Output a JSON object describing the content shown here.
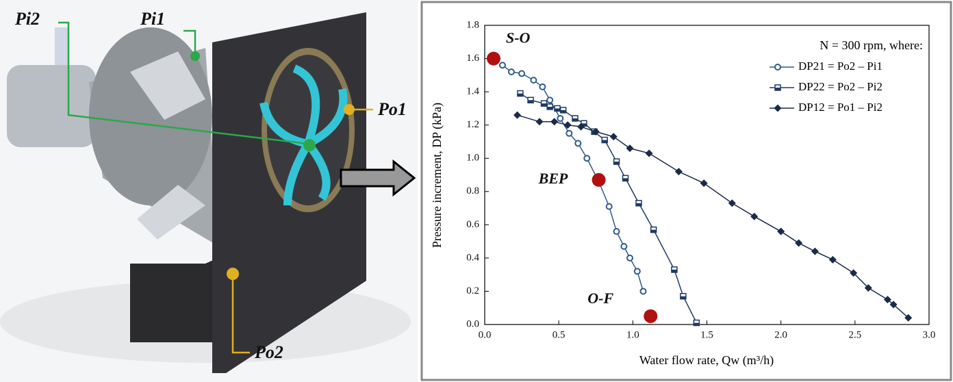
{
  "illustration_labels": [
    "Pi2",
    "Pi1",
    "Po1",
    "Po2"
  ],
  "chart_data": {
    "type": "line",
    "xlabel": "Water flow rate, Qw (m³/h)",
    "ylabel": "Pressure increment, DP (kPa)",
    "legend_title": "N = 300 rpm, where:",
    "legend": "upper right",
    "xlim": [
      0,
      3.0
    ],
    "ylim": [
      0,
      1.8
    ],
    "xticks": [
      {
        "value": 0,
        "label": "0.0"
      },
      0.5,
      {
        "value": 1,
        "label": "1.0"
      },
      1.5,
      {
        "value": 2,
        "label": "2.0"
      },
      2.5,
      {
        "value": 3,
        "label": "3.0"
      }
    ],
    "yticks": [
      {
        "value": 0,
        "label": "0.0"
      },
      0.2,
      0.4,
      0.6,
      0.8,
      {
        "value": 1,
        "label": "1.0"
      },
      1.2,
      1.4,
      1.6,
      1.8
    ],
    "series": [
      {
        "name": "DP21 = Po2 – Pi1",
        "color": "#2f5b8c",
        "marker": "circle",
        "x": [
          0.12,
          0.18,
          0.25,
          0.33,
          0.39,
          0.44,
          0.51,
          0.57,
          0.63,
          0.69,
          0.77,
          0.84,
          0.89,
          0.94,
          0.98,
          1.03,
          1.07
        ],
        "values": [
          1.56,
          1.52,
          1.51,
          1.47,
          1.43,
          1.35,
          1.24,
          1.15,
          1.09,
          1.0,
          0.86,
          0.71,
          0.56,
          0.47,
          0.4,
          0.32,
          0.2
        ]
      },
      {
        "name": "DP22 = Po2 – Pi2",
        "color": "#1f3a66",
        "marker": "half-square",
        "x": [
          0.24,
          0.31,
          0.4,
          0.44,
          0.49,
          0.53,
          0.61,
          0.67,
          0.74,
          0.81,
          0.89,
          0.95,
          1.04,
          1.14,
          1.28,
          1.34,
          1.43
        ],
        "values": [
          1.39,
          1.35,
          1.33,
          1.31,
          1.3,
          1.29,
          1.24,
          1.21,
          1.16,
          1.11,
          0.98,
          0.88,
          0.73,
          0.57,
          0.33,
          0.17,
          0.01
        ]
      },
      {
        "name": "DP12 = Po1 – Pi2",
        "color": "#1a2a4a",
        "marker": "diamond",
        "x": [
          0.22,
          0.37,
          0.47,
          0.56,
          0.65,
          0.75,
          0.87,
          0.98,
          1.11,
          1.31,
          1.48,
          1.67,
          1.82,
          2.0,
          2.12,
          2.23,
          2.35,
          2.49,
          2.59,
          2.72,
          2.76,
          2.86
        ],
        "values": [
          1.26,
          1.22,
          1.22,
          1.2,
          1.19,
          1.16,
          1.13,
          1.06,
          1.03,
          0.92,
          0.85,
          0.73,
          0.65,
          0.56,
          0.49,
          0.44,
          0.39,
          0.31,
          0.22,
          0.15,
          0.12,
          0.04
        ]
      }
    ],
    "annotations": [
      {
        "text": "S-O",
        "x": 0.06,
        "y": 1.6,
        "color": "#b01010"
      },
      {
        "text": "BEP",
        "x": 0.77,
        "y": 0.87,
        "color": "#b01010"
      },
      {
        "text": "O-F",
        "x": 1.12,
        "y": 0.05,
        "color": "#b01010"
      }
    ]
  }
}
